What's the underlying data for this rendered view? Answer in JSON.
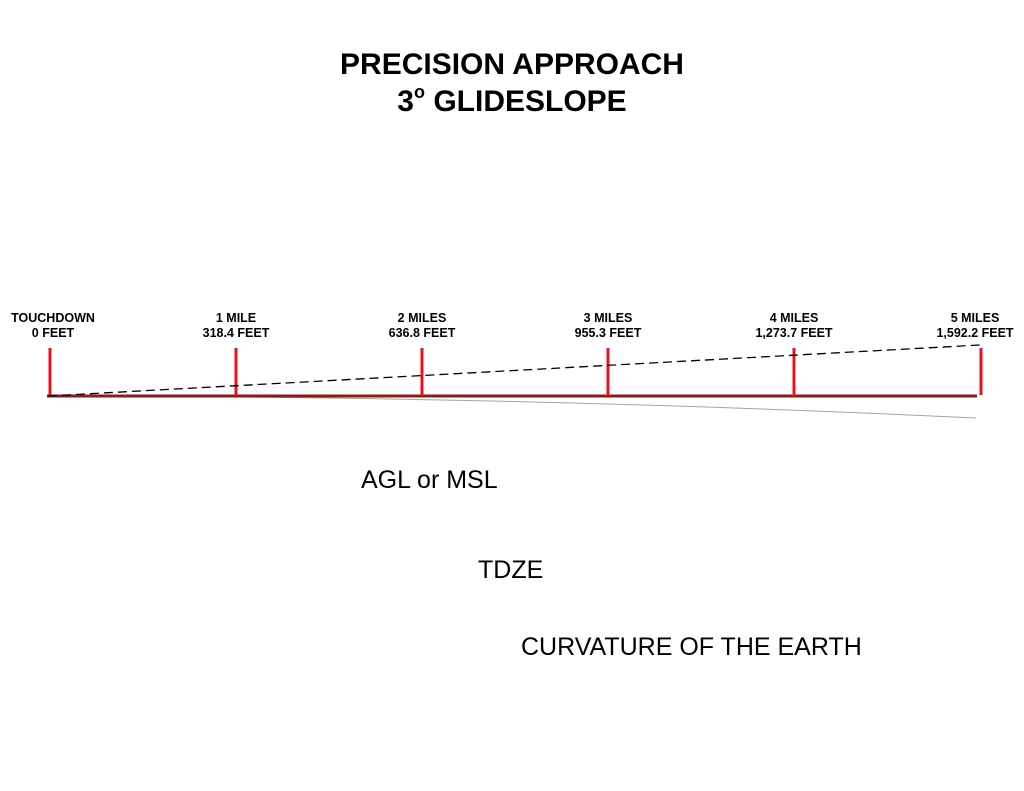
{
  "title": {
    "line1": "PRECISION APPROACH",
    "line2_number": "3",
    "line2_superscript": "o",
    "line2_text": "GLIDESLOPE"
  },
  "markers": [
    {
      "distance": "TOUCHDOWN",
      "height": "0 FEET"
    },
    {
      "distance": "1 MILE",
      "height": "318.4 FEET"
    },
    {
      "distance": "2 MILES",
      "height": "636.8 FEET"
    },
    {
      "distance": "3 MILES",
      "height": "955.3 FEET"
    },
    {
      "distance": "4 MILES",
      "height": "1,273.7 FEET"
    },
    {
      "distance": "5 MILES",
      "height": "1,592.2 FEET"
    }
  ],
  "annotations": {
    "agl_msl": "AGL or MSL",
    "tdze": "TDZE",
    "curvature": "CURVATURE OF THE EARTH"
  },
  "colors": {
    "tick": "#e3141c",
    "tdze_line": "#8a1c17",
    "glideslope": "#000000",
    "curvature": "#a3a3a3"
  }
}
